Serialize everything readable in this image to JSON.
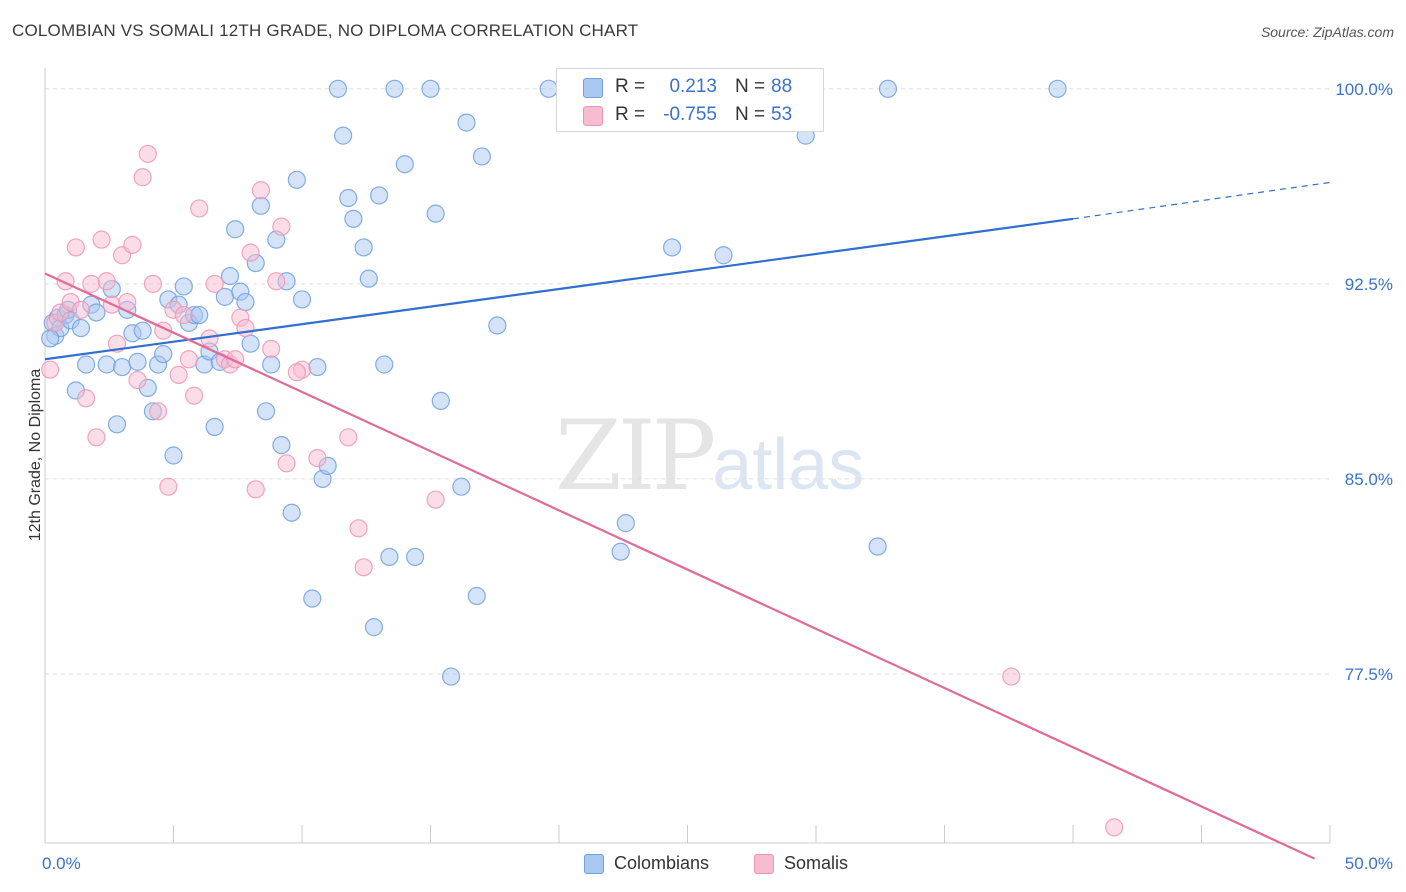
{
  "header": {
    "title": "COLOMBIAN VS SOMALI 12TH GRADE, NO DIPLOMA CORRELATION CHART",
    "source": "Source: ZipAtlas.com"
  },
  "legend": {
    "rows": [
      {
        "r_label": "R =",
        "r_value": "0.213",
        "n_label": "N =",
        "n_value": "88",
        "color": "#a9c8f0"
      },
      {
        "r_label": "R =",
        "r_value": "-0.755",
        "n_label": "N =",
        "n_value": "53",
        "color": "#f6bcd0"
      }
    ]
  },
  "bottom_legend": [
    {
      "label": "Colombians",
      "color": "#a9c8f0"
    },
    {
      "label": "Somalis",
      "color": "#f6bcd0"
    }
  ],
  "watermark": {
    "zip": "ZIP",
    "atlas": "atlas"
  },
  "chart_data": {
    "type": "scatter",
    "title": "COLOMBIAN VS SOMALI 12TH GRADE, NO DIPLOMA CORRELATION CHART",
    "xlabel": "",
    "ylabel": "12th Grade, No Diploma",
    "xlim": [
      0,
      50
    ],
    "ylim": [
      71.0,
      100.8
    ],
    "x_tick_labels": [
      "0.0%",
      "50.0%"
    ],
    "y_ticks": [
      100.0,
      92.5,
      85.0,
      77.5
    ],
    "y_tick_labels": [
      "100.0%",
      "92.5%",
      "85.0%",
      "77.5%"
    ],
    "grid": true,
    "legend_position": "top-center",
    "series": [
      {
        "name": "Colombians",
        "color": "#6fa0e0",
        "fill": "#a9c8f0",
        "trend": {
          "x": [
            0,
            40
          ],
          "y": [
            89.6,
            95.0
          ],
          "dashed_to": [
            50,
            96.4
          ]
        },
        "points": [
          [
            0.3,
            91.0
          ],
          [
            0.4,
            90.5
          ],
          [
            0.5,
            91.2
          ],
          [
            0.6,
            90.8
          ],
          [
            0.8,
            91.3
          ],
          [
            0.9,
            91.5
          ],
          [
            1.0,
            91.1
          ],
          [
            1.2,
            88.4
          ],
          [
            1.4,
            90.8
          ],
          [
            1.6,
            89.4
          ],
          [
            1.8,
            91.7
          ],
          [
            2.0,
            91.4
          ],
          [
            2.4,
            89.4
          ],
          [
            2.6,
            92.3
          ],
          [
            2.8,
            87.1
          ],
          [
            3.0,
            89.3
          ],
          [
            3.2,
            91.5
          ],
          [
            3.4,
            90.6
          ],
          [
            3.6,
            89.5
          ],
          [
            3.8,
            90.7
          ],
          [
            4.0,
            88.5
          ],
          [
            4.2,
            87.6
          ],
          [
            4.4,
            89.4
          ],
          [
            4.6,
            89.8
          ],
          [
            4.8,
            91.9
          ],
          [
            5.0,
            85.9
          ],
          [
            5.2,
            91.7
          ],
          [
            5.4,
            92.4
          ],
          [
            5.6,
            91.0
          ],
          [
            5.8,
            91.3
          ],
          [
            6.0,
            91.3
          ],
          [
            6.2,
            89.4
          ],
          [
            6.4,
            89.9
          ],
          [
            6.6,
            87.0
          ],
          [
            6.8,
            89.5
          ],
          [
            7.0,
            92.0
          ],
          [
            7.2,
            92.8
          ],
          [
            7.4,
            94.6
          ],
          [
            7.6,
            92.2
          ],
          [
            7.8,
            91.8
          ],
          [
            8.0,
            90.2
          ],
          [
            8.2,
            93.3
          ],
          [
            8.4,
            95.5
          ],
          [
            8.6,
            87.6
          ],
          [
            8.8,
            89.4
          ],
          [
            9.0,
            94.2
          ],
          [
            9.2,
            86.3
          ],
          [
            9.4,
            92.6
          ],
          [
            9.6,
            83.7
          ],
          [
            9.8,
            96.5
          ],
          [
            10.0,
            91.9
          ],
          [
            10.4,
            80.4
          ],
          [
            10.6,
            89.3
          ],
          [
            10.8,
            85.0
          ],
          [
            11.0,
            85.5
          ],
          [
            11.4,
            100.0
          ],
          [
            11.6,
            98.2
          ],
          [
            11.8,
            95.8
          ],
          [
            12.0,
            95.0
          ],
          [
            12.4,
            93.9
          ],
          [
            12.6,
            92.7
          ],
          [
            12.8,
            79.3
          ],
          [
            13.0,
            95.9
          ],
          [
            13.2,
            89.4
          ],
          [
            13.4,
            82.0
          ],
          [
            13.6,
            100.0
          ],
          [
            14.0,
            97.1
          ],
          [
            14.4,
            82.0
          ],
          [
            15.0,
            100.0
          ],
          [
            15.2,
            95.2
          ],
          [
            15.4,
            88.0
          ],
          [
            15.8,
            77.4
          ],
          [
            16.2,
            84.7
          ],
          [
            16.4,
            98.7
          ],
          [
            16.8,
            80.5
          ],
          [
            17.0,
            97.4
          ],
          [
            17.6,
            90.9
          ],
          [
            19.6,
            100.0
          ],
          [
            22.4,
            82.2
          ],
          [
            22.6,
            83.3
          ],
          [
            24.4,
            93.9
          ],
          [
            26.4,
            93.6
          ],
          [
            27.6,
            100.0
          ],
          [
            29.6,
            98.2
          ],
          [
            32.4,
            82.4
          ],
          [
            32.8,
            100.0
          ],
          [
            39.4,
            100.0
          ],
          [
            0.2,
            90.4
          ]
        ]
      },
      {
        "name": "Somalis",
        "color": "#ee95b6",
        "fill": "#f6bcd0",
        "trend": {
          "x": [
            0,
            49.4
          ],
          "y": [
            92.9,
            70.4
          ]
        },
        "points": [
          [
            0.2,
            89.2
          ],
          [
            0.4,
            91.0
          ],
          [
            0.6,
            91.4
          ],
          [
            0.8,
            92.6
          ],
          [
            1.0,
            91.8
          ],
          [
            1.2,
            93.9
          ],
          [
            1.4,
            91.5
          ],
          [
            1.6,
            88.1
          ],
          [
            1.8,
            92.5
          ],
          [
            2.0,
            86.6
          ],
          [
            2.2,
            94.2
          ],
          [
            2.4,
            92.6
          ],
          [
            2.6,
            91.7
          ],
          [
            2.8,
            90.2
          ],
          [
            3.0,
            93.6
          ],
          [
            3.2,
            91.8
          ],
          [
            3.4,
            94.0
          ],
          [
            3.6,
            88.8
          ],
          [
            3.8,
            96.6
          ],
          [
            4.0,
            97.5
          ],
          [
            4.2,
            92.5
          ],
          [
            4.4,
            87.6
          ],
          [
            4.6,
            90.7
          ],
          [
            4.8,
            84.7
          ],
          [
            5.0,
            91.5
          ],
          [
            5.2,
            89.0
          ],
          [
            5.4,
            91.3
          ],
          [
            5.6,
            89.6
          ],
          [
            5.8,
            88.2
          ],
          [
            6.0,
            95.4
          ],
          [
            6.4,
            90.4
          ],
          [
            6.6,
            92.5
          ],
          [
            7.0,
            89.6
          ],
          [
            7.2,
            89.4
          ],
          [
            7.4,
            89.6
          ],
          [
            7.6,
            91.2
          ],
          [
            7.8,
            90.8
          ],
          [
            8.0,
            93.7
          ],
          [
            8.2,
            84.6
          ],
          [
            8.4,
            96.1
          ],
          [
            8.8,
            90.0
          ],
          [
            9.0,
            92.6
          ],
          [
            9.2,
            94.7
          ],
          [
            9.4,
            85.6
          ],
          [
            10.0,
            89.2
          ],
          [
            10.6,
            85.8
          ],
          [
            11.8,
            86.6
          ],
          [
            12.2,
            83.1
          ],
          [
            12.4,
            81.6
          ],
          [
            15.2,
            84.2
          ],
          [
            37.6,
            77.4
          ],
          [
            41.6,
            71.6
          ],
          [
            9.8,
            89.1
          ]
        ]
      }
    ]
  }
}
